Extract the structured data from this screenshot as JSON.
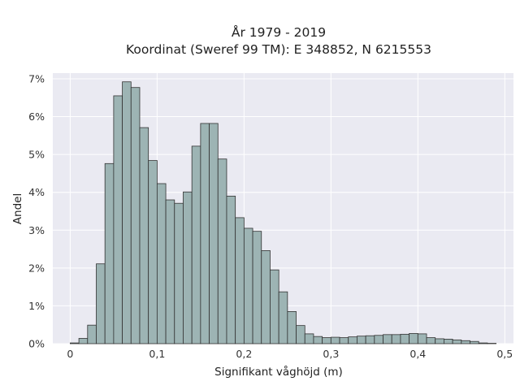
{
  "chart_data": {
    "type": "bar",
    "title": "År 1979 - 2019",
    "subtitle": "Koordinat (Sweref 99 TM): E 348852, N 6215553",
    "xlabel": "Signifikant våghöjd (m)",
    "ylabel": "Andel",
    "xlim": [
      -0.02,
      0.51
    ],
    "ylim": [
      0,
      0.0715
    ],
    "bin_width": 0.01,
    "x_ticks": [
      0,
      0.1,
      0.2,
      0.3,
      0.4,
      0.5
    ],
    "x_tick_labels": [
      "0",
      "0,1",
      "0,2",
      "0,3",
      "0,4",
      "0,5"
    ],
    "y_ticks": [
      0,
      0.01,
      0.02,
      0.03,
      0.04,
      0.05,
      0.06,
      0.07
    ],
    "y_tick_labels": [
      "0%",
      "1%",
      "2%",
      "3%",
      "4%",
      "5%",
      "6%",
      "7%"
    ],
    "grid": true,
    "bar_color": "#9db4b4",
    "bar_edge_color": "#333333",
    "background_color": "#eaeaf2",
    "bins_start": [
      0,
      0.01,
      0.02,
      0.03,
      0.04,
      0.05,
      0.06,
      0.07,
      0.08,
      0.09,
      0.1,
      0.11,
      0.12,
      0.13,
      0.14,
      0.15,
      0.16,
      0.17,
      0.18,
      0.19,
      0.2,
      0.21,
      0.22,
      0.23,
      0.24,
      0.25,
      0.26,
      0.27,
      0.28,
      0.29,
      0.3,
      0.31,
      0.32,
      0.33,
      0.34,
      0.35,
      0.36,
      0.37,
      0.38,
      0.39,
      0.4,
      0.41,
      0.42,
      0.43,
      0.44,
      0.45,
      0.46,
      0.47,
      0.48
    ],
    "values": [
      0.0002,
      0.0014,
      0.0049,
      0.0211,
      0.0476,
      0.0655,
      0.0692,
      0.0677,
      0.0571,
      0.0484,
      0.0423,
      0.038,
      0.0371,
      0.0401,
      0.0522,
      0.0582,
      0.0582,
      0.0488,
      0.039,
      0.0333,
      0.0305,
      0.0297,
      0.0246,
      0.0195,
      0.0137,
      0.0085,
      0.0048,
      0.0026,
      0.0019,
      0.0016,
      0.0017,
      0.0016,
      0.0018,
      0.002,
      0.0021,
      0.0022,
      0.0024,
      0.0024,
      0.0025,
      0.0027,
      0.0026,
      0.0016,
      0.0013,
      0.0012,
      0.001,
      0.0008,
      0.0006,
      0.0002,
      0.0001
    ]
  }
}
